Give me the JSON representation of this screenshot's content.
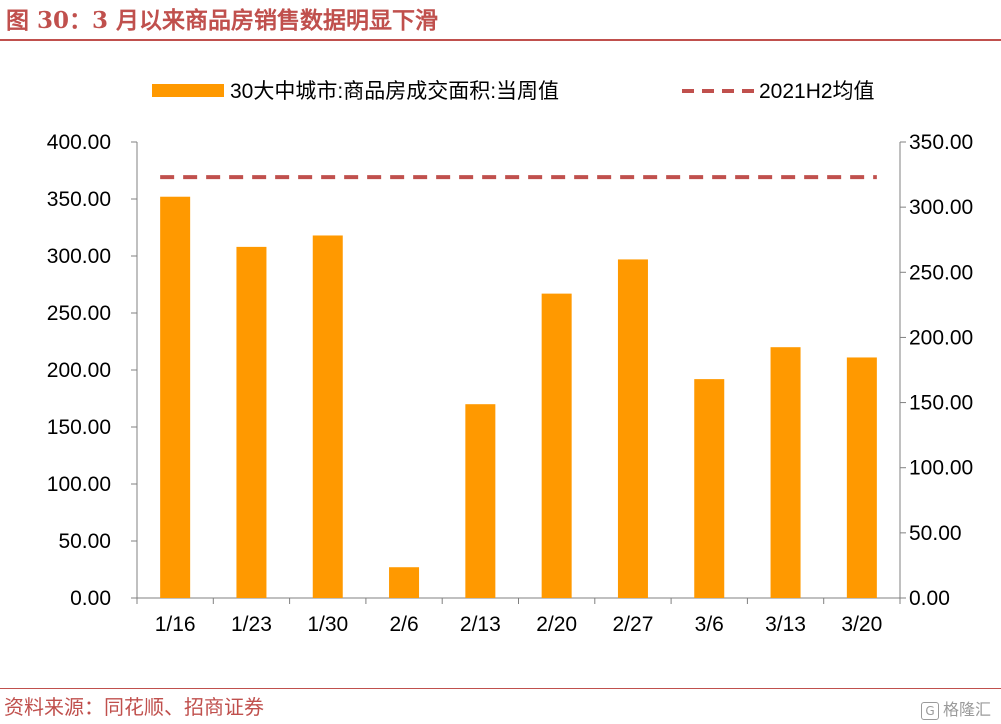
{
  "header": {
    "title": "图 30：3 月以来商品房销售数据明显下滑"
  },
  "footer": {
    "source": "资料来源：同花顺、招商证券",
    "watermark": "格隆汇"
  },
  "colors": {
    "accent": "#C0504D",
    "bar": "#FF9900",
    "reference_line": "#C0504D",
    "axis": "#808080"
  },
  "chart_data": {
    "type": "bar",
    "categories": [
      "1/16",
      "1/23",
      "1/30",
      "2/6",
      "2/13",
      "2/20",
      "2/27",
      "3/6",
      "3/13",
      "3/20"
    ],
    "series": [
      {
        "name": "30大中城市:商品房成交面积:当周值",
        "axis": "left",
        "kind": "bar",
        "values": [
          352,
          308,
          318,
          27,
          170,
          267,
          297,
          192,
          220,
          211
        ]
      },
      {
        "name": "2021H2均值",
        "axis": "right",
        "kind": "dashed-line",
        "value": 323
      }
    ],
    "y_left": {
      "min": 0,
      "max": 400,
      "step": 50,
      "tick_labels": [
        "0.00",
        "50.00",
        "100.00",
        "150.00",
        "200.00",
        "250.00",
        "300.00",
        "350.00",
        "400.00"
      ]
    },
    "y_right": {
      "min": 0,
      "max": 350,
      "step": 50,
      "tick_labels": [
        "0.00",
        "50.00",
        "100.00",
        "150.00",
        "200.00",
        "250.00",
        "300.00",
        "350.00"
      ]
    },
    "grid": false,
    "legend_position": "top"
  }
}
